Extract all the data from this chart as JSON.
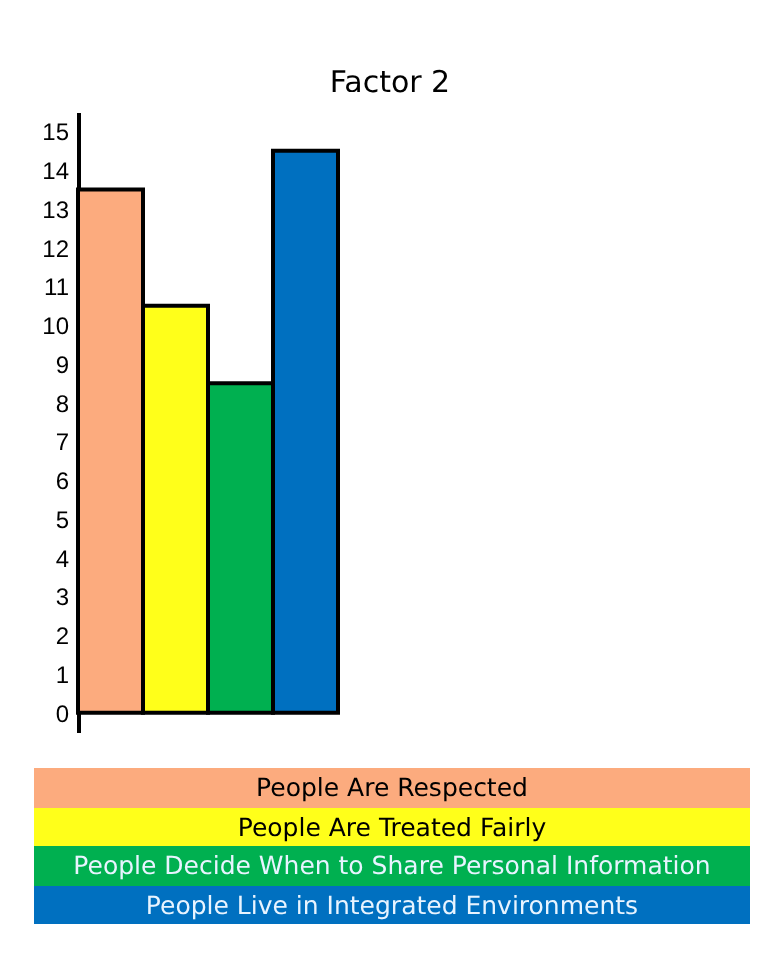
{
  "chart_data": {
    "type": "bar",
    "title": "Factor 2",
    "categories": [
      null,
      null,
      null,
      null
    ],
    "stacked": true,
    "series": [
      {
        "name": "People Are Respected",
        "color": "#fcab7e",
        "values": [
          13.5,
          null,
          null,
          null
        ]
      },
      {
        "name": "People Are Treated Fairly",
        "color": "#ffff1a",
        "values": [
          null,
          10.5,
          null,
          null
        ]
      },
      {
        "name": "People Decide When to Share Personal Information",
        "color": "#00b050",
        "values": [
          null,
          null,
          8.5,
          null
        ]
      },
      {
        "name": "People Live in Integrated Environments",
        "color": "#0070c0",
        "values": [
          null,
          null,
          null,
          14.5
        ]
      }
    ],
    "ylim": [
      -0.5,
      15.5
    ],
    "yticks": [
      0,
      1,
      2,
      3,
      4,
      5,
      6,
      7,
      8,
      9,
      10,
      11,
      12,
      13,
      14,
      15
    ],
    "legend": "bottom"
  }
}
